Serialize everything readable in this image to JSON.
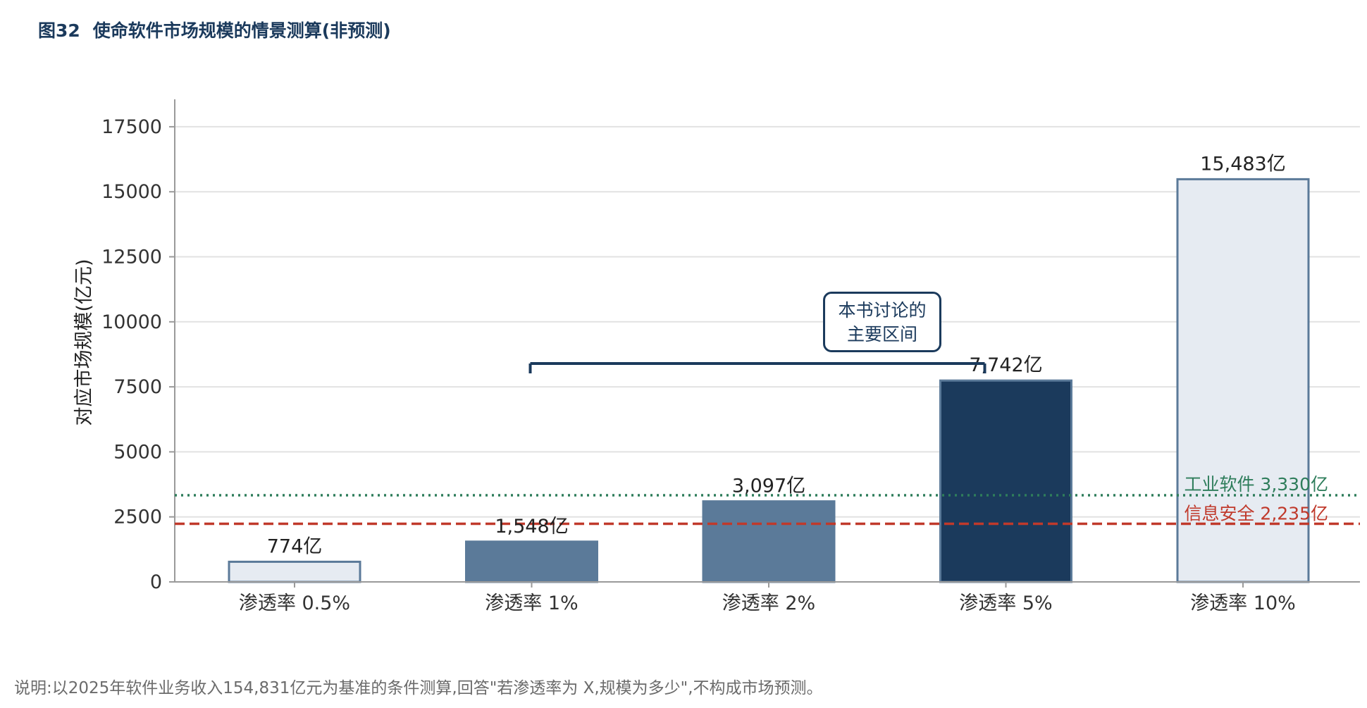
{
  "figure": {
    "number": "图32",
    "title": "使命软件市场规模的情景测算(非预测)"
  },
  "footnote": "说明:以2025年软件业务收入154,831亿元为基准的条件测算,回答\"若渗透率为 X,规模为多少\",不构成市场预测。",
  "annotation": {
    "line1": "本书讨论的",
    "line2": "主要区间",
    "range_from": "渗透率 1%",
    "range_to": "渗透率 5%"
  },
  "chart_data": {
    "type": "bar",
    "categories": [
      "渗透率 0.5%",
      "渗透率 1%",
      "渗透率 2%",
      "渗透率 5%",
      "渗透率 10%"
    ],
    "values": [
      774,
      1548,
      3097,
      7742,
      15483
    ],
    "value_labels": [
      "774亿",
      "1,548亿",
      "3,097亿",
      "7,742亿",
      "15,483亿"
    ],
    "bar_colors": [
      "#e6ebf2",
      "#5b7a99",
      "#5b7a99",
      "#1b3a5c",
      "#e6ebf2"
    ],
    "bar_edge_color": "#5b7a99",
    "ylabel": "对应市场规模(亿元)",
    "xlabel": "",
    "ylim": [
      0,
      18500
    ],
    "yticks": [
      0,
      2500,
      5000,
      7500,
      10000,
      12500,
      15000,
      17500
    ],
    "grid": true,
    "reference_lines": [
      {
        "label": "工业软件 3,330亿",
        "value": 3330,
        "color": "#2e7d5b",
        "style": "dotted"
      },
      {
        "label": "信息安全 2,235亿",
        "value": 2235,
        "color": "#c0392b",
        "style": "dashed"
      }
    ]
  }
}
